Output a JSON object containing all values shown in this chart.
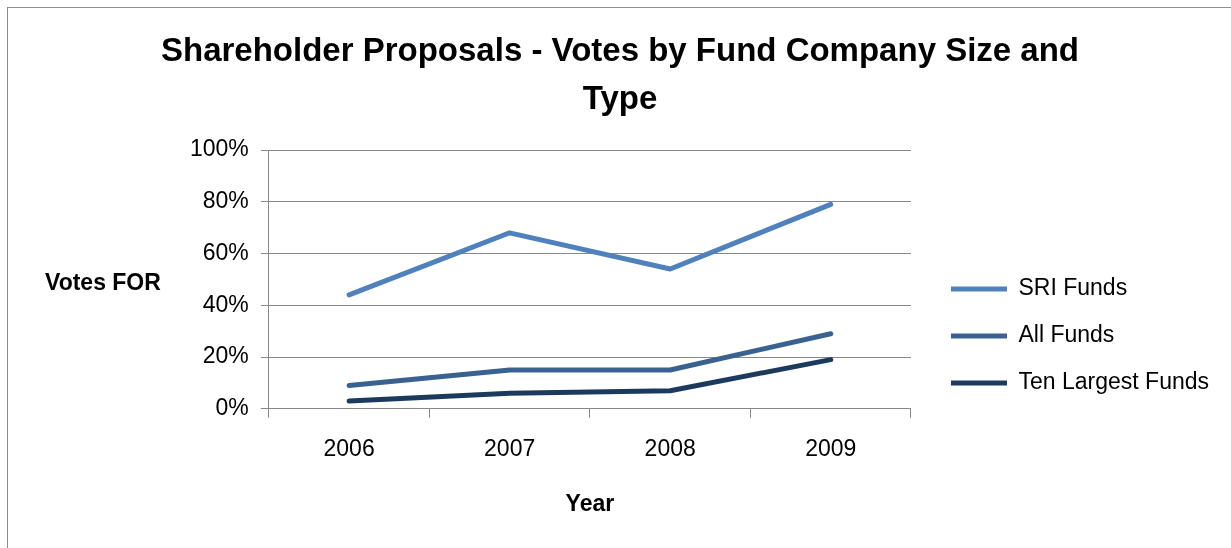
{
  "chart_data": {
    "type": "line",
    "title": "Shareholder Proposals - Votes by Fund Company Size and Type",
    "xlabel": "Year",
    "ylabel": "Votes FOR",
    "categories": [
      "2006",
      "2007",
      "2008",
      "2009"
    ],
    "series": [
      {
        "name": "SRI Funds",
        "color": "#4f81bd",
        "values": [
          44,
          68,
          54,
          79
        ]
      },
      {
        "name": "All Funds",
        "color": "#3a6291",
        "values": [
          9,
          15,
          15,
          29
        ]
      },
      {
        "name": "Ten Largest Funds",
        "color": "#1c3a5e",
        "values": [
          3,
          6,
          7,
          19
        ]
      }
    ],
    "ylim": [
      0,
      100
    ],
    "yticks": [
      {
        "value": 0,
        "label": "0%"
      },
      {
        "value": 20,
        "label": "20%"
      },
      {
        "value": 40,
        "label": "40%"
      },
      {
        "value": 60,
        "label": "60%"
      },
      {
        "value": 80,
        "label": "80%"
      },
      {
        "value": 100,
        "label": "100%"
      }
    ],
    "grid": "y",
    "legend": "right",
    "marker": "none",
    "line_style": "solid"
  }
}
